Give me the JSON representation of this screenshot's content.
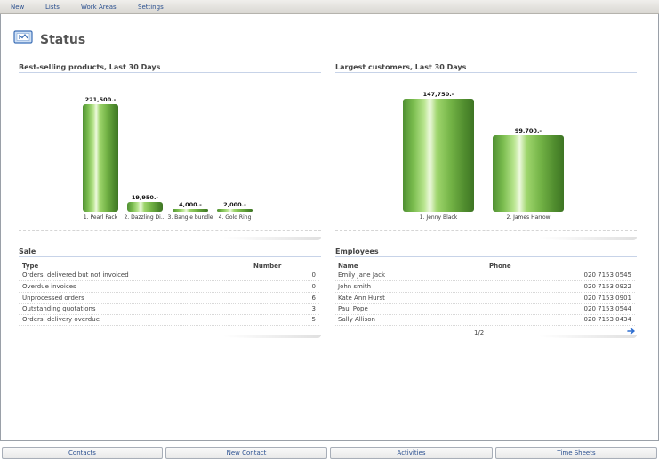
{
  "menu": {
    "items": [
      "New",
      "Lists",
      "Work Areas",
      "Settings"
    ]
  },
  "page": {
    "title": "Status",
    "icon": "status-monitor-icon"
  },
  "colors": {
    "bar_green": "#72b245",
    "link_blue": "#2a4f8f",
    "rule_blue": "#c7d3e8"
  },
  "best_selling": {
    "title": "Best-selling products, Last 30 Days"
  },
  "largest_customers": {
    "title": "Largest customers, Last 30 Days"
  },
  "chart_data": [
    {
      "type": "bar",
      "title": "Best-selling products, Last 30 Days",
      "categories": [
        "1. Pearl Pack",
        "2. Dazzling Di...",
        "3. Bangle bundle",
        "4. Gold Ring"
      ],
      "values": [
        221500,
        19950,
        4000,
        2000
      ],
      "value_labels": [
        "221,500.-",
        "19,950.-",
        "4,000.-",
        "2,000.-"
      ],
      "ylim": [
        0,
        221500
      ]
    },
    {
      "type": "bar",
      "title": "Largest customers, Last 30 Days",
      "categories": [
        "1. Jenny Black",
        "2. James Harrow"
      ],
      "values": [
        147750,
        99700
      ],
      "value_labels": [
        "147,750.-",
        "99,700.-"
      ],
      "ylim": [
        0,
        147750
      ]
    }
  ],
  "sale": {
    "title": "Sale",
    "col_type": "Type",
    "col_number": "Number",
    "rows": [
      {
        "type": "Orders, delivered but not invoiced",
        "number": "0"
      },
      {
        "type": "Overdue invoices",
        "number": "0"
      },
      {
        "type": "Unprocessed orders",
        "number": "6"
      },
      {
        "type": "Outstanding quotations",
        "number": "3"
      },
      {
        "type": "Orders, delivery overdue",
        "number": "5"
      }
    ]
  },
  "employees": {
    "title": "Employees",
    "col_name": "Name",
    "col_phone": "Phone",
    "rows": [
      {
        "name": "Emily Jane Jack",
        "phone": "020 7153 0545"
      },
      {
        "name": "John smith",
        "phone": "020 7153 0922"
      },
      {
        "name": "Kate Ann Hurst",
        "phone": "020 7153 0901"
      },
      {
        "name": "Paul Pope",
        "phone": "020 7153 0544"
      },
      {
        "name": "Sally Allison",
        "phone": "020 7153 0434"
      }
    ],
    "pager": "1/2"
  },
  "bottom_buttons": [
    "Contacts",
    "New Contact",
    "Activities",
    "Time Sheets"
  ]
}
